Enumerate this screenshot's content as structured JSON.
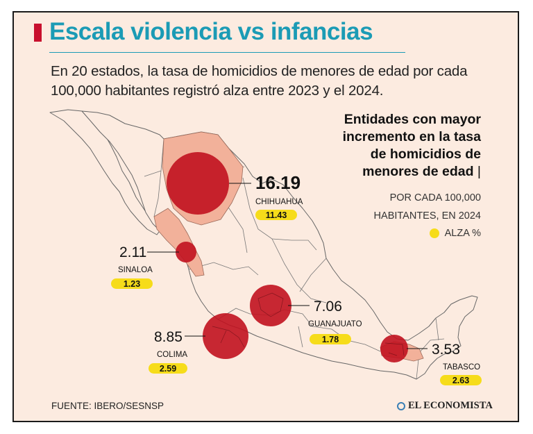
{
  "header": {
    "title": "Escala violencia vs infancias",
    "subtitle": "En 20 estados, la tasa de homicidios de menores de edad por cada 100,000 habitantes registró alza entre 2023 y el 2024."
  },
  "legend": {
    "heading_lines": [
      "Entidades con mayor",
      "incremento en la tasa",
      "de homicidios de",
      "menores de edad"
    ],
    "pipe": "|",
    "sub_lines": [
      "POR CADA 100,000",
      "HABITANTES, EN 2024"
    ],
    "key_label": "ALZA %",
    "key_color": "#f6dc1a"
  },
  "colors": {
    "title": "#1b9bb5",
    "title_bar": "#c8102e",
    "highlight_fill": "#f2b19a",
    "bubble": "#c1121f",
    "badge": "#f6dc1a",
    "background": "#fcebe0"
  },
  "chart_data": {
    "type": "map-bubble",
    "title": "Entidades con mayor incremento en la tasa de homicidios de menores de edad",
    "unit": "por cada 100,000 habitantes, en 2024",
    "states": [
      {
        "name": "CHIHUAHUA",
        "value": 16.19,
        "rise": 11.43
      },
      {
        "name": "SINALOA",
        "value": 2.11,
        "rise": 1.23
      },
      {
        "name": "GUANAJUATO",
        "value": 7.06,
        "rise": 1.78
      },
      {
        "name": "COLIMA",
        "value": 8.85,
        "rise": 2.59
      },
      {
        "name": "TABASCO",
        "value": 3.53,
        "rise": 2.63
      }
    ]
  },
  "footer": {
    "source": "FUENTE: IBERO/SESNSP",
    "brand": "EL ECONOMISTA"
  }
}
